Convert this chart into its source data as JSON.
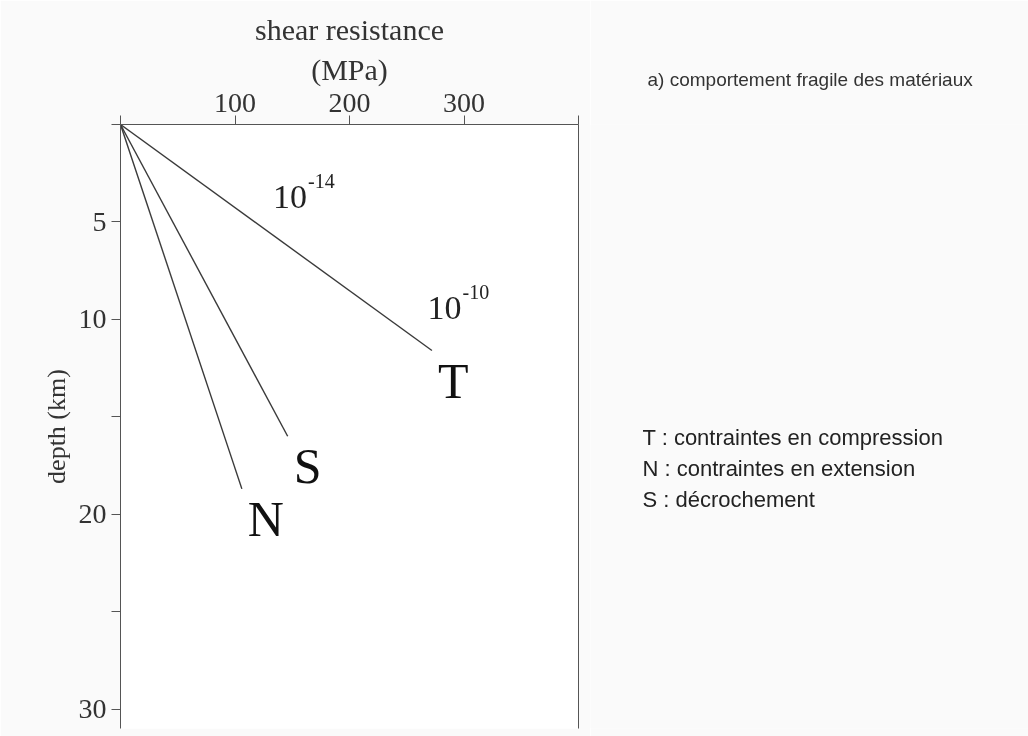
{
  "chart_data": {
    "type": "line",
    "title": "a) comportement fragile des matériaux",
    "xlabel": "shear resistance\n(MPa)",
    "ylabel": "depth (km)",
    "series": [
      {
        "name": "T",
        "color": "#3a3a3a",
        "x": [
          0,
          272
        ],
        "values": [
          0,
          11.6
        ]
      },
      {
        "name": "S",
        "color": "#3a3a3a",
        "x": [
          0,
          146
        ],
        "values": [
          0,
          16
        ]
      },
      {
        "name": "N",
        "color": "#3a3a3a",
        "x": [
          0,
          106
        ],
        "values": [
          0,
          18.7
        ]
      }
    ],
    "xlim": [
      0,
      400
    ],
    "xticks": [
      {
        "value": 0,
        "label": null
      },
      100,
      200,
      300,
      {
        "value": 400,
        "label": null
      }
    ],
    "ylim": [
      31,
      0
    ],
    "yticks": [
      {
        "value": 0,
        "label": null
      },
      5,
      10,
      {
        "value": 15,
        "label": null
      },
      20,
      {
        "value": 25,
        "label": null
      },
      30
    ],
    "annotations": [
      {
        "text": "10$^{-14}$",
        "x": 100,
        "y": 4.3
      },
      {
        "text": "10$^{-10}$",
        "x": 235,
        "y": 10.0
      },
      "T : contraintes en compression",
      "N : contraintes en extension",
      "S : décrochement"
    ],
    "grid": false,
    "line_style": "solid"
  }
}
